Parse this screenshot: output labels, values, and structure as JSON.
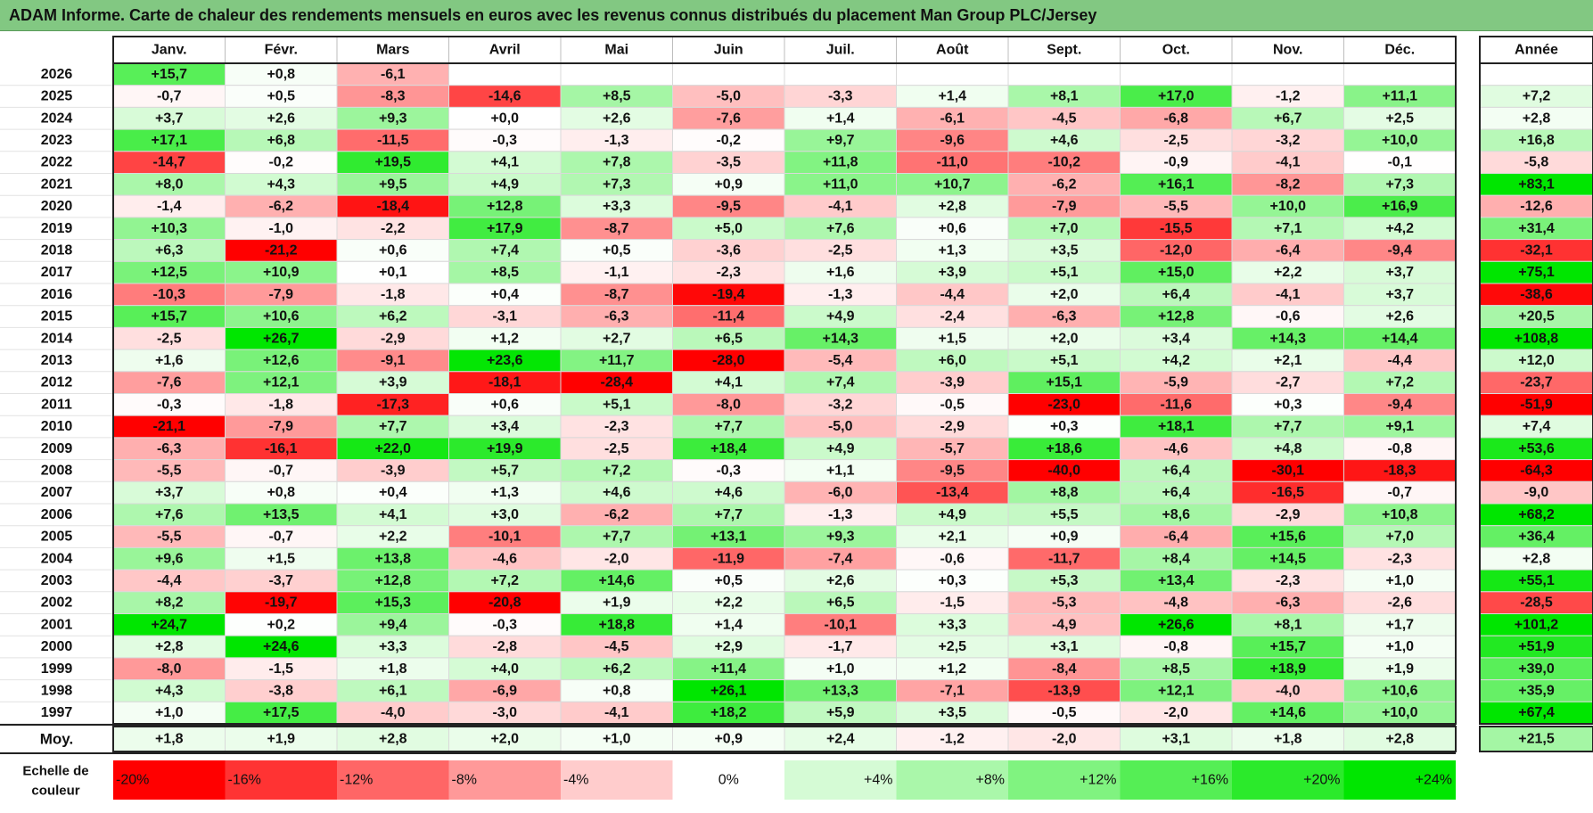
{
  "header": {
    "title": "ADAM Informe. Carte de chaleur des rendements mensuels en euros avec les revenus connus distribués du placement Man Group PLC/Jersey"
  },
  "chart_data": {
    "type": "heatmap",
    "title": "ADAM Informe. Carte de chaleur des rendements mensuels en euros avec les revenus connus distribués du placement Man Group PLC/Jersey",
    "months": [
      "Janv.",
      "Févr.",
      "Mars",
      "Avril",
      "Mai",
      "Juin",
      "Juil.",
      "Août",
      "Sept.",
      "Oct.",
      "Nov.",
      "Déc."
    ],
    "year_label": "Année",
    "rows": [
      {
        "year": "2026",
        "values": [
          "+15,7",
          "+0,8",
          "-6,1",
          null,
          null,
          null,
          null,
          null,
          null,
          null,
          null,
          null
        ],
        "annual": null
      },
      {
        "year": "2025",
        "values": [
          "-0,7",
          "+0,5",
          "-8,3",
          "-14,6",
          "+8,5",
          "-5,0",
          "-3,3",
          "+1,4",
          "+8,1",
          "+17,0",
          "-1,2",
          "+11,1"
        ],
        "annual": "+7,2"
      },
      {
        "year": "2024",
        "values": [
          "+3,7",
          "+2,6",
          "+9,3",
          "+0,0",
          "+2,6",
          "-7,6",
          "+1,4",
          "-6,1",
          "-4,5",
          "-6,8",
          "+6,7",
          "+2,5"
        ],
        "annual": "+2,8"
      },
      {
        "year": "2023",
        "values": [
          "+17,1",
          "+6,8",
          "-11,5",
          "-0,3",
          "-1,3",
          "-0,2",
          "+9,7",
          "-9,6",
          "+4,6",
          "-2,5",
          "-3,2",
          "+10,0"
        ],
        "annual": "+16,8"
      },
      {
        "year": "2022",
        "values": [
          "-14,7",
          "-0,2",
          "+19,5",
          "+4,1",
          "+7,8",
          "-3,5",
          "+11,8",
          "-11,0",
          "-10,2",
          "-0,9",
          "-4,1",
          "-0,1"
        ],
        "annual": "-5,8"
      },
      {
        "year": "2021",
        "values": [
          "+8,0",
          "+4,3",
          "+9,5",
          "+4,9",
          "+7,3",
          "+0,9",
          "+11,0",
          "+10,7",
          "-6,2",
          "+16,1",
          "-8,2",
          "+7,3"
        ],
        "annual": "+83,1"
      },
      {
        "year": "2020",
        "values": [
          "-1,4",
          "-6,2",
          "-18,4",
          "+12,8",
          "+3,3",
          "-9,5",
          "-4,1",
          "+2,8",
          "-7,9",
          "-5,5",
          "+10,0",
          "+16,9"
        ],
        "annual": "-12,6"
      },
      {
        "year": "2019",
        "values": [
          "+10,3",
          "-1,0",
          "-2,2",
          "+17,9",
          "-8,7",
          "+5,0",
          "+7,6",
          "+0,6",
          "+7,0",
          "-15,5",
          "+7,1",
          "+4,2"
        ],
        "annual": "+31,4"
      },
      {
        "year": "2018",
        "values": [
          "+6,3",
          "-21,2",
          "+0,6",
          "+7,4",
          "+0,5",
          "-3,6",
          "-2,5",
          "+1,3",
          "+3,5",
          "-12,0",
          "-6,4",
          "-9,4"
        ],
        "annual": "-32,1"
      },
      {
        "year": "2017",
        "values": [
          "+12,5",
          "+10,9",
          "+0,1",
          "+8,5",
          "-1,1",
          "-2,3",
          "+1,6",
          "+3,9",
          "+5,1",
          "+15,0",
          "+2,2",
          "+3,7"
        ],
        "annual": "+75,1"
      },
      {
        "year": "2016",
        "values": [
          "-10,3",
          "-7,9",
          "-1,8",
          "+0,4",
          "-8,7",
          "-19,4",
          "-1,3",
          "-4,4",
          "+2,0",
          "+6,4",
          "-4,1",
          "+3,7"
        ],
        "annual": "-38,6"
      },
      {
        "year": "2015",
        "values": [
          "+15,7",
          "+10,6",
          "+6,2",
          "-3,1",
          "-6,3",
          "-11,4",
          "+4,9",
          "-2,4",
          "-6,3",
          "+12,8",
          "-0,6",
          "+2,6"
        ],
        "annual": "+20,5"
      },
      {
        "year": "2014",
        "values": [
          "-2,5",
          "+26,7",
          "-2,9",
          "+1,2",
          "+2,7",
          "+6,5",
          "+14,3",
          "+1,5",
          "+2,0",
          "+3,4",
          "+14,3",
          "+14,4"
        ],
        "annual": "+108,8"
      },
      {
        "year": "2013",
        "values": [
          "+1,6",
          "+12,6",
          "-9,1",
          "+23,6",
          "+11,7",
          "-28,0",
          "-5,4",
          "+6,0",
          "+5,1",
          "+4,2",
          "+2,1",
          "-4,4"
        ],
        "annual": "+12,0"
      },
      {
        "year": "2012",
        "values": [
          "-7,6",
          "+12,1",
          "+3,9",
          "-18,1",
          "-28,4",
          "+4,1",
          "+7,4",
          "-3,9",
          "+15,1",
          "-5,9",
          "-2,7",
          "+7,2"
        ],
        "annual": "-23,7"
      },
      {
        "year": "2011",
        "values": [
          "-0,3",
          "-1,8",
          "-17,3",
          "+0,6",
          "+5,1",
          "-8,0",
          "-3,2",
          "-0,5",
          "-23,0",
          "-11,6",
          "+0,3",
          "-9,4"
        ],
        "annual": "-51,9"
      },
      {
        "year": "2010",
        "values": [
          "-21,1",
          "-7,9",
          "+7,7",
          "+3,4",
          "-2,3",
          "+7,7",
          "-5,0",
          "-2,9",
          "+0,3",
          "+18,1",
          "+7,7",
          "+9,1"
        ],
        "annual": "+7,4"
      },
      {
        "year": "2009",
        "values": [
          "-6,3",
          "-16,1",
          "+22,0",
          "+19,9",
          "-2,5",
          "+18,4",
          "+4,9",
          "-5,7",
          "+18,6",
          "-4,6",
          "+4,8",
          "-0,8"
        ],
        "annual": "+53,6"
      },
      {
        "year": "2008",
        "values": [
          "-5,5",
          "-0,7",
          "-3,9",
          "+5,7",
          "+7,2",
          "-0,3",
          "+1,1",
          "-9,5",
          "-40,0",
          "+6,4",
          "-30,1",
          "-18,3"
        ],
        "annual": "-64,3"
      },
      {
        "year": "2007",
        "values": [
          "+3,7",
          "+0,8",
          "+0,4",
          "+1,3",
          "+4,6",
          "+4,6",
          "-6,0",
          "-13,4",
          "+8,8",
          "+6,4",
          "-16,5",
          "-0,7"
        ],
        "annual": "-9,0"
      },
      {
        "year": "2006",
        "values": [
          "+7,6",
          "+13,5",
          "+4,1",
          "+3,0",
          "-6,2",
          "+7,7",
          "-1,3",
          "+4,9",
          "+5,5",
          "+8,6",
          "-2,9",
          "+10,8"
        ],
        "annual": "+68,2"
      },
      {
        "year": "2005",
        "values": [
          "-5,5",
          "-0,7",
          "+2,2",
          "-10,1",
          "+7,7",
          "+13,1",
          "+9,3",
          "+2,1",
          "+0,9",
          "-6,4",
          "+15,6",
          "+7,0"
        ],
        "annual": "+36,4"
      },
      {
        "year": "2004",
        "values": [
          "+9,6",
          "+1,5",
          "+13,8",
          "-4,6",
          "-2,0",
          "-11,9",
          "-7,4",
          "-0,6",
          "-11,7",
          "+8,4",
          "+14,5",
          "-2,3"
        ],
        "annual": "+2,8"
      },
      {
        "year": "2003",
        "values": [
          "-4,4",
          "-3,7",
          "+12,8",
          "+7,2",
          "+14,6",
          "+0,5",
          "+2,6",
          "+0,3",
          "+5,3",
          "+13,4",
          "-2,3",
          "+1,0"
        ],
        "annual": "+55,1"
      },
      {
        "year": "2002",
        "values": [
          "+8,2",
          "-19,7",
          "+15,3",
          "-20,8",
          "+1,9",
          "+2,2",
          "+6,5",
          "-1,5",
          "-5,3",
          "-4,8",
          "-6,3",
          "-2,6"
        ],
        "annual": "-28,5"
      },
      {
        "year": "2001",
        "values": [
          "+24,7",
          "+0,2",
          "+9,4",
          "-0,3",
          "+18,8",
          "+1,4",
          "-10,1",
          "+3,3",
          "-4,9",
          "+26,6",
          "+8,1",
          "+1,7"
        ],
        "annual": "+101,2"
      },
      {
        "year": "2000",
        "values": [
          "+2,8",
          "+24,6",
          "+3,3",
          "-2,8",
          "-4,5",
          "+2,9",
          "-1,7",
          "+2,5",
          "+3,1",
          "-0,8",
          "+15,7",
          "+1,0"
        ],
        "annual": "+51,9"
      },
      {
        "year": "1999",
        "values": [
          "-8,0",
          "-1,5",
          "+1,8",
          "+4,0",
          "+6,2",
          "+11,4",
          "+1,0",
          "+1,2",
          "-8,4",
          "+8,5",
          "+18,9",
          "+1,9"
        ],
        "annual": "+39,0"
      },
      {
        "year": "1998",
        "values": [
          "+4,3",
          "-3,8",
          "+6,1",
          "-6,9",
          "+0,8",
          "+26,1",
          "+13,3",
          "-7,1",
          "-13,9",
          "+12,1",
          "-4,0",
          "+10,6"
        ],
        "annual": "+35,9"
      },
      {
        "year": "1997",
        "values": [
          "+1,0",
          "+17,5",
          "-4,0",
          "-3,0",
          "-4,1",
          "+18,2",
          "+5,9",
          "+3,5",
          "-0,5",
          "-2,0",
          "+14,6",
          "+10,0"
        ],
        "annual": "+67,4"
      }
    ],
    "average": {
      "label": "Moy.",
      "values": [
        "+1,8",
        "+1,9",
        "+2,8",
        "+2,0",
        "+1,0",
        "+0,9",
        "+2,4",
        "-1,2",
        "-2,0",
        "+3,1",
        "+1,8",
        "+2,8"
      ],
      "annual": "+21,5"
    },
    "scale": {
      "label_line1": "Echelle de",
      "label_line2": "couleur",
      "stops": [
        {
          "label": "-20%",
          "value": -20
        },
        {
          "label": "-16%",
          "value": -16
        },
        {
          "label": "-12%",
          "value": -12
        },
        {
          "label": "-8%",
          "value": -8
        },
        {
          "label": "-4%",
          "value": -4
        },
        {
          "label": "0%",
          "value": 0
        },
        {
          "label": "+4%",
          "value": 4
        },
        {
          "label": "+8%",
          "value": 8
        },
        {
          "label": "+12%",
          "value": 12
        },
        {
          "label": "+16%",
          "value": 16
        },
        {
          "label": "+20%",
          "value": 20
        },
        {
          "label": "+24%",
          "value": 24
        }
      ]
    },
    "colors": {
      "negative_max": "#ff0000",
      "neutral": "#ffffff",
      "positive_max": "#00e600",
      "title_bg": "#82c882"
    },
    "color_ranges": {
      "monthly_neg": -20,
      "monthly_pos": 24,
      "annual_neg": -40,
      "annual_pos": 60
    }
  }
}
